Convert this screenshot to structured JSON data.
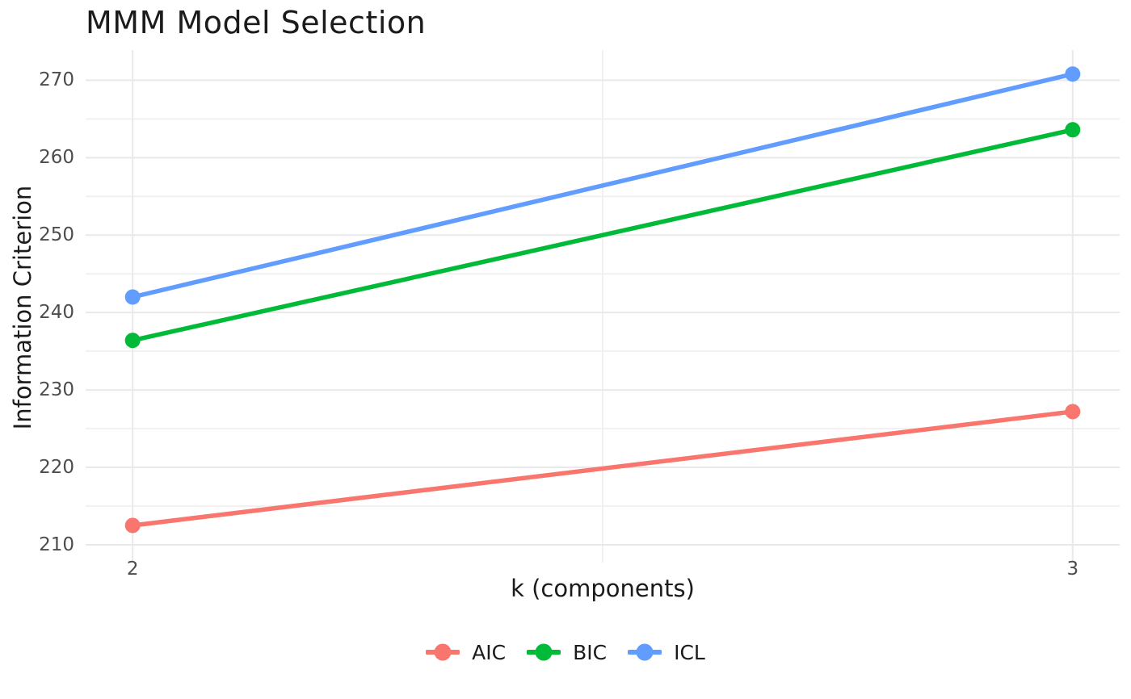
{
  "chart_data": {
    "type": "line",
    "title": "MMM Model Selection",
    "xlabel": "k (components)",
    "ylabel": "Information Criterion",
    "x": [
      2,
      3
    ],
    "series": [
      {
        "name": "AIC",
        "color": "#F8766D",
        "values": [
          212.5,
          227.2
        ]
      },
      {
        "name": "BIC",
        "color": "#00BA38",
        "values": [
          236.4,
          263.6
        ]
      },
      {
        "name": "ICL",
        "color": "#619CFF",
        "values": [
          242.0,
          270.8
        ]
      }
    ],
    "x_ticks": {
      "values": [
        2,
        3
      ],
      "labels": [
        "2",
        "3"
      ],
      "minor": [
        2.5
      ]
    },
    "y_ticks": {
      "values": [
        210,
        220,
        230,
        240,
        250,
        260,
        270
      ],
      "labels": [
        "210",
        "220",
        "230",
        "240",
        "250",
        "260",
        "270"
      ],
      "minor": [
        215,
        225,
        235,
        245,
        255,
        265
      ]
    },
    "xlim": [
      1.95,
      3.05
    ],
    "ylim": [
      207.7,
      273.9
    ],
    "grid": true,
    "legend_position": "bottom",
    "background_color": "#FFFFFF",
    "grid_major_color": "#E9E9E9",
    "grid_minor_color": "#F1F1F1",
    "tick_label_color": "#4D4D4D",
    "text_color": "#1B1B1B"
  }
}
